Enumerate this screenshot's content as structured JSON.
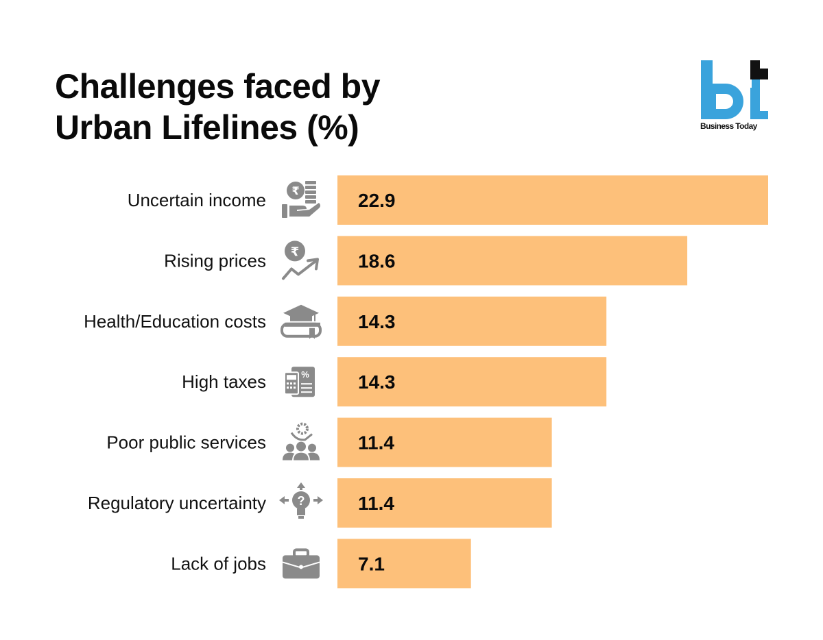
{
  "header": {
    "title_line1": "Challenges faced by",
    "title_line2": "Urban Lifelines (%)"
  },
  "logo": {
    "mark": "bt",
    "text": "Business Today",
    "color_primary": "#3aa3dc",
    "color_accent": "#111111"
  },
  "colors": {
    "bar": "#fdc07a",
    "icon": "#8a8a8a",
    "text": "#0a0a0a"
  },
  "chart_data": {
    "type": "bar",
    "orientation": "horizontal",
    "title": "Challenges faced by Urban Lifelines (%)",
    "xlabel": "",
    "ylabel": "",
    "xlim": [
      0,
      22.9
    ],
    "grid": false,
    "legend": "none",
    "categories": [
      "Uncertain income",
      "Rising prices",
      "Health/Education costs",
      "High taxes",
      "Poor public services",
      "Regulatory uncertainty",
      "Lack of jobs"
    ],
    "values": [
      22.9,
      18.6,
      14.3,
      14.3,
      11.4,
      11.4,
      7.1
    ],
    "value_labels": [
      "22.9",
      "18.6",
      "14.3",
      "14.3",
      "11.4",
      "11.4",
      "7.1"
    ],
    "icons": [
      "rupee-coins-hand-icon",
      "rupee-trend-up-icon",
      "graduation-cap-book-icon",
      "tax-calculator-icon",
      "public-services-people-icon",
      "lightbulb-question-arrows-icon",
      "briefcase-icon"
    ]
  }
}
